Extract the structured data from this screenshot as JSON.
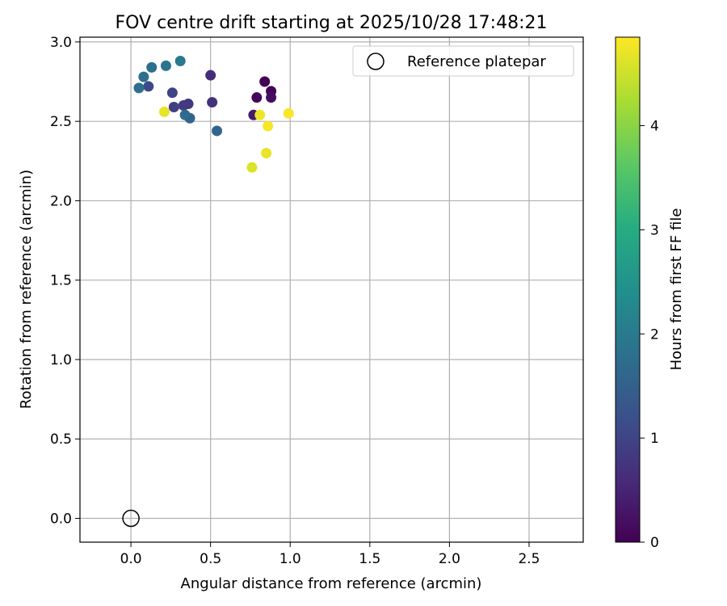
{
  "chart_data": {
    "type": "scatter",
    "title": "FOV centre drift starting at 2025/10/28 17:48:21",
    "xlabel": "Angular distance from reference (arcmin)",
    "ylabel": "Rotation from reference (arcmin)",
    "xlim": [
      -0.32,
      2.84
    ],
    "ylim": [
      -0.15,
      3.03
    ],
    "xticks": [
      0.0,
      0.5,
      1.0,
      1.5,
      2.0,
      2.5
    ],
    "xtick_labels": [
      "0.0",
      "0.5",
      "1.0",
      "1.5",
      "2.0",
      "2.5"
    ],
    "yticks": [
      0.0,
      0.5,
      1.0,
      1.5,
      2.0,
      2.5,
      3.0
    ],
    "ytick_labels": [
      "0.0",
      "0.5",
      "1.0",
      "1.5",
      "2.0",
      "2.5",
      "3.0"
    ],
    "grid": true,
    "legend": {
      "label": "Reference platepar",
      "position": "top-right"
    },
    "reference_point": {
      "x": 0.0,
      "y": 0.0
    },
    "colorbar": {
      "label": "Hours from first FF file",
      "range": [
        0,
        4.85
      ],
      "ticks": [
        0,
        1,
        2,
        3,
        4
      ],
      "tick_labels": [
        "0",
        "1",
        "2",
        "3",
        "4"
      ],
      "colormap": "viridis",
      "colors": [
        "#440154",
        "#472c7a",
        "#3b518b",
        "#2c718e",
        "#21908d",
        "#27ad81",
        "#5cc863",
        "#aadc32",
        "#fde725"
      ]
    },
    "points": [
      {
        "x": 0.84,
        "y": 2.75,
        "h": 0.0
      },
      {
        "x": 0.88,
        "y": 2.69,
        "h": 0.05
      },
      {
        "x": 0.79,
        "y": 2.65,
        "h": 0.1
      },
      {
        "x": 0.88,
        "y": 2.65,
        "h": 0.2
      },
      {
        "x": 0.77,
        "y": 2.54,
        "h": 0.35
      },
      {
        "x": 0.5,
        "y": 2.79,
        "h": 0.6
      },
      {
        "x": 0.51,
        "y": 2.62,
        "h": 0.7
      },
      {
        "x": 0.36,
        "y": 2.61,
        "h": 0.8
      },
      {
        "x": 0.33,
        "y": 2.6,
        "h": 0.85
      },
      {
        "x": 0.27,
        "y": 2.59,
        "h": 0.9
      },
      {
        "x": 0.26,
        "y": 2.68,
        "h": 1.0
      },
      {
        "x": 0.11,
        "y": 2.72,
        "h": 1.1
      },
      {
        "x": 0.54,
        "y": 2.44,
        "h": 1.6
      },
      {
        "x": 0.37,
        "y": 2.52,
        "h": 1.6
      },
      {
        "x": 0.34,
        "y": 2.54,
        "h": 1.7
      },
      {
        "x": 0.05,
        "y": 2.71,
        "h": 1.8
      },
      {
        "x": 0.08,
        "y": 2.78,
        "h": 1.8
      },
      {
        "x": 0.13,
        "y": 2.84,
        "h": 1.8
      },
      {
        "x": 0.22,
        "y": 2.85,
        "h": 1.9
      },
      {
        "x": 0.31,
        "y": 2.88,
        "h": 2.0
      },
      {
        "x": 0.76,
        "y": 2.21,
        "h": 4.6
      },
      {
        "x": 0.85,
        "y": 2.3,
        "h": 4.7
      },
      {
        "x": 0.21,
        "y": 2.56,
        "h": 4.7
      },
      {
        "x": 0.81,
        "y": 2.54,
        "h": 4.75
      },
      {
        "x": 0.86,
        "y": 2.47,
        "h": 4.8
      },
      {
        "x": 0.99,
        "y": 2.55,
        "h": 4.82
      }
    ]
  }
}
